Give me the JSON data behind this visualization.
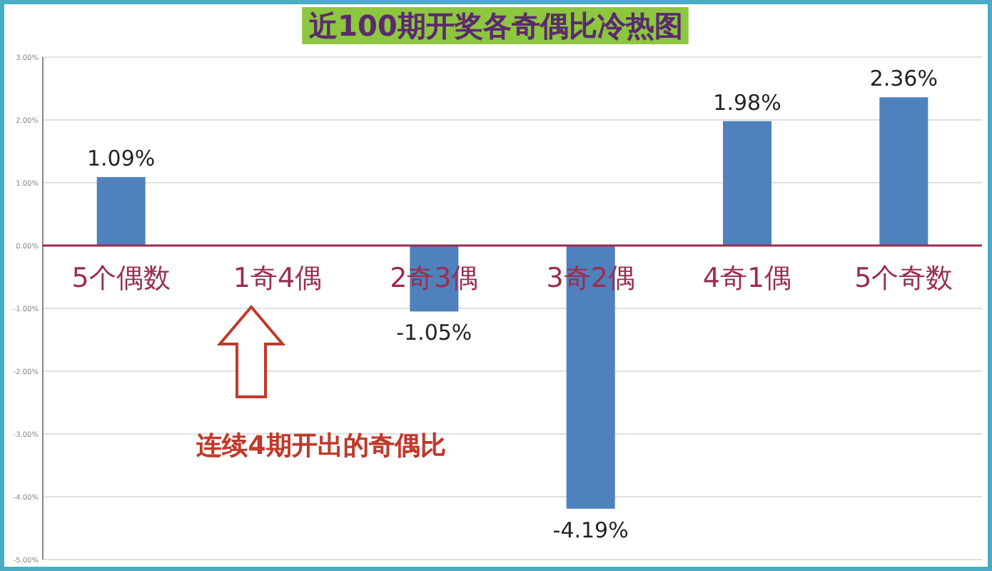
{
  "chart_data": {
    "type": "bar",
    "title": "近100期开奖各奇偶比冷热图",
    "categories": [
      "5个偶数",
      "1奇4偶",
      "2奇3偶",
      "3奇2偶",
      "4奇1偶",
      "5个奇数"
    ],
    "values": [
      1.09,
      null,
      -1.05,
      -4.19,
      1.98,
      2.36
    ],
    "value_labels": [
      "1.09%",
      null,
      "-1.05%",
      "-4.19%",
      "1.98%",
      "2.36%"
    ],
    "color": "#4f81bd",
    "ylim": [
      -5,
      3
    ],
    "yticks": [
      {
        "value": 3,
        "label": "3.00%"
      },
      {
        "value": 2,
        "label": "2.00%"
      },
      {
        "value": 1,
        "label": "1.00%"
      },
      {
        "value": 0,
        "label": "0.00%"
      },
      {
        "value": -1,
        "label": "-1.00%"
      },
      {
        "value": -2,
        "label": "-2.00%"
      },
      {
        "value": -3,
        "label": "-3.00%"
      },
      {
        "value": -4,
        "label": "-4.00%"
      },
      {
        "value": -5,
        "label": "-5.00%"
      }
    ],
    "grid": "y",
    "annotations": [
      "连续4期开出的奇偶比"
    ]
  }
}
